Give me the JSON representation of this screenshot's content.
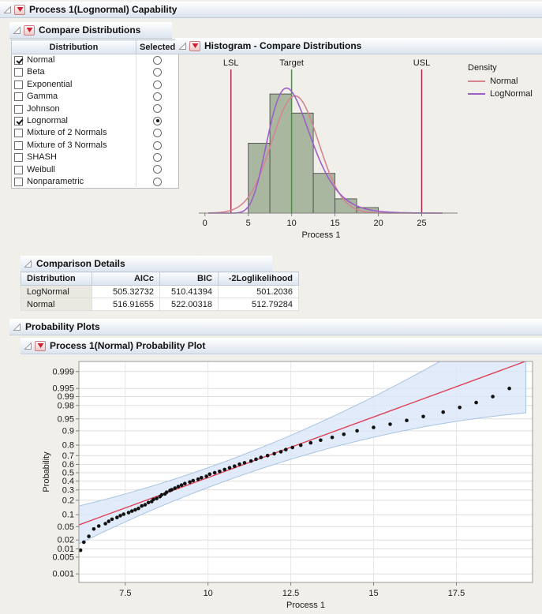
{
  "sections": {
    "capability": "Process 1(Lognormal) Capability",
    "compare_distributions": "Compare Distributions",
    "histogram": "Histogram - Compare Distributions",
    "comparison_details": "Comparison Details",
    "probability_plots": "Probability Plots",
    "normal_probability_plot": "Process 1(Normal) Probability Plot"
  },
  "icons": {
    "disclosure": "open-disclosure-triangle",
    "menu": "red-triangle-menu"
  },
  "compare_table": {
    "headers": [
      "Distribution",
      "Selected"
    ],
    "rows": [
      {
        "label": "Normal",
        "checked": true,
        "selected": false
      },
      {
        "label": "Beta",
        "checked": false,
        "selected": false
      },
      {
        "label": "Exponential",
        "checked": false,
        "selected": false
      },
      {
        "label": "Gamma",
        "checked": false,
        "selected": false
      },
      {
        "label": "Johnson",
        "checked": false,
        "selected": false
      },
      {
        "label": "Lognormal",
        "checked": true,
        "selected": true
      },
      {
        "label": "Mixture of 2 Normals",
        "checked": false,
        "selected": false
      },
      {
        "label": "Mixture of 3 Normals",
        "checked": false,
        "selected": false
      },
      {
        "label": "SHASH",
        "checked": false,
        "selected": false
      },
      {
        "label": "Weibull",
        "checked": false,
        "selected": false
      },
      {
        "label": "Nonparametric",
        "checked": false,
        "selected": false
      }
    ]
  },
  "comparison_details": {
    "headers": [
      "Distribution",
      "AICc",
      "BIC",
      "-2Loglikelihood"
    ],
    "rows": [
      [
        "LogNormal",
        "505.32732",
        "510.41394",
        "501.2036"
      ],
      [
        "Normal",
        "516.91655",
        "522.00318",
        "512.79284"
      ]
    ]
  },
  "chart_data": [
    {
      "type": "histogram",
      "title": "Histogram - Compare Distributions",
      "xlabel": "Process 1",
      "x_ticks": [
        0,
        5,
        10,
        15,
        20,
        25
      ],
      "x_range": [
        -0.7,
        27.5
      ],
      "y_max_density": 0.175,
      "bins": [
        {
          "x0": 5,
          "x1": 7.5,
          "density": 0.088
        },
        {
          "x0": 7.5,
          "x1": 10,
          "density": 0.15
        },
        {
          "x0": 10,
          "x1": 12.5,
          "density": 0.126
        },
        {
          "x0": 12.5,
          "x1": 15,
          "density": 0.05
        },
        {
          "x0": 15,
          "x1": 17.5,
          "density": 0.018
        },
        {
          "x0": 17.5,
          "x1": 20,
          "density": 0.007
        }
      ],
      "bar_fill": "#a9b7a1",
      "bar_stroke": "#4f4f4f",
      "spec_lines": [
        {
          "label": "LSL",
          "x": 3,
          "color": "#aa2950"
        },
        {
          "label": "Target",
          "x": 10,
          "color": "#2fa12c"
        },
        {
          "label": "USL",
          "x": 25,
          "color": "#aa2950"
        }
      ],
      "legend_title": "Density",
      "curves": [
        {
          "name": "Normal",
          "dist": "normal",
          "mean": 10.4,
          "sd": 2.7,
          "color": "#d4858f"
        },
        {
          "name": "LogNormal",
          "dist": "lognormal",
          "meanlog": 2.31,
          "sdlog": 0.26,
          "color": "#9c5fc8"
        }
      ]
    },
    {
      "type": "scatter",
      "title": "Process 1(Normal) Probability Plot",
      "xlabel": "Process 1",
      "ylabel": "Probability",
      "x_ticks": [
        7.5,
        10,
        12.5,
        15,
        17.5
      ],
      "x_range": [
        6.1,
        19.8
      ],
      "y_ticks": [
        0.999,
        0.995,
        0.99,
        0.98,
        0.95,
        0.9,
        0.8,
        0.7,
        0.6,
        0.5,
        0.4,
        0.3,
        0.2,
        0.1,
        0.05,
        0.02,
        0.01,
        0.005,
        0.001
      ],
      "z_range": [
        -3.35,
        3.4
      ],
      "fit_line": {
        "mean": 10.4,
        "sd": 2.7,
        "color": "#e03a50"
      },
      "conf_band": {
        "a": 0.3,
        "b": 0.11,
        "fill": "#d9e6f7",
        "stroke": "#a8c4e2",
        "opacity": 0.8
      },
      "point_color": "#111111",
      "points": [
        [
          6.15,
          0.009
        ],
        [
          6.25,
          0.017
        ],
        [
          6.4,
          0.026
        ],
        [
          6.55,
          0.043
        ],
        [
          6.7,
          0.052
        ],
        [
          6.9,
          0.06
        ],
        [
          7.0,
          0.069
        ],
        [
          7.1,
          0.078
        ],
        [
          7.25,
          0.086
        ],
        [
          7.35,
          0.095
        ],
        [
          7.45,
          0.103
        ],
        [
          7.6,
          0.112
        ],
        [
          7.7,
          0.121
        ],
        [
          7.8,
          0.129
        ],
        [
          7.9,
          0.138
        ],
        [
          8.0,
          0.155
        ],
        [
          8.1,
          0.164
        ],
        [
          8.2,
          0.181
        ],
        [
          8.3,
          0.19
        ],
        [
          8.35,
          0.207
        ],
        [
          8.45,
          0.216
        ],
        [
          8.55,
          0.233
        ],
        [
          8.6,
          0.25
        ],
        [
          8.7,
          0.259
        ],
        [
          8.75,
          0.276
        ],
        [
          8.85,
          0.293
        ],
        [
          8.9,
          0.302
        ],
        [
          9.0,
          0.319
        ],
        [
          9.1,
          0.336
        ],
        [
          9.2,
          0.353
        ],
        [
          9.3,
          0.371
        ],
        [
          9.45,
          0.388
        ],
        [
          9.55,
          0.405
        ],
        [
          9.7,
          0.422
        ],
        [
          9.8,
          0.44
        ],
        [
          9.95,
          0.457
        ],
        [
          10.05,
          0.483
        ],
        [
          10.2,
          0.5
        ],
        [
          10.35,
          0.517
        ],
        [
          10.5,
          0.54
        ],
        [
          10.65,
          0.56
        ],
        [
          10.8,
          0.58
        ],
        [
          10.95,
          0.603
        ],
        [
          11.1,
          0.62
        ],
        [
          11.3,
          0.64
        ],
        [
          11.45,
          0.66
        ],
        [
          11.6,
          0.68
        ],
        [
          11.8,
          0.7
        ],
        [
          12.0,
          0.72
        ],
        [
          12.2,
          0.74
        ],
        [
          12.35,
          0.76
        ],
        [
          12.55,
          0.78
        ],
        [
          12.8,
          0.8
        ],
        [
          13.1,
          0.82
        ],
        [
          13.4,
          0.84
        ],
        [
          13.75,
          0.86
        ],
        [
          14.1,
          0.88
        ],
        [
          14.5,
          0.9
        ],
        [
          15.0,
          0.917
        ],
        [
          15.5,
          0.931
        ],
        [
          16.0,
          0.945
        ],
        [
          16.5,
          0.957
        ],
        [
          17.1,
          0.968
        ],
        [
          17.6,
          0.977
        ],
        [
          18.1,
          0.984
        ],
        [
          18.6,
          0.99
        ],
        [
          19.1,
          0.995
        ]
      ]
    }
  ]
}
